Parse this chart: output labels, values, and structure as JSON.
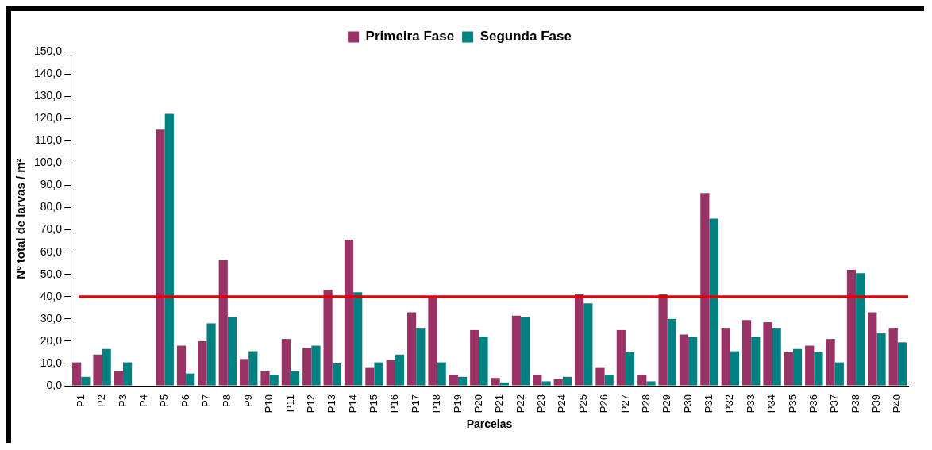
{
  "chart_data": {
    "type": "bar",
    "xlabel": "Parcelas",
    "ylabel": "Nº total de larvas / m²",
    "categories": [
      "P1",
      "P2",
      "P3",
      "P4",
      "P5",
      "P6",
      "P7",
      "P8",
      "P9",
      "P10",
      "P11",
      "P12",
      "P13",
      "P14",
      "P15",
      "P16",
      "P17",
      "P18",
      "P19",
      "P20",
      "P21",
      "P22",
      "P23",
      "P24",
      "P25",
      "P26",
      "P27",
      "P28",
      "P29",
      "P30",
      "P31",
      "P32",
      "P33",
      "P34",
      "P35",
      "P36",
      "P37",
      "P38",
      "P39",
      "P40"
    ],
    "series": [
      {
        "name": "Primeira Fase",
        "color": "#993366",
        "values": [
          10.5,
          14,
          6.5,
          0,
          115,
          18,
          20,
          56.5,
          12,
          6.5,
          21,
          17,
          43,
          65.5,
          8,
          11.5,
          33,
          40,
          5,
          25,
          3.5,
          31.5,
          5,
          3,
          41,
          8,
          25,
          5,
          41,
          23,
          86.5,
          26,
          29.5,
          28.5,
          15,
          18,
          21,
          52,
          33,
          26
        ]
      },
      {
        "name": "Segunda Fase",
        "color": "#008080",
        "values": [
          4,
          16.5,
          10.5,
          0,
          122,
          5.5,
          28,
          31,
          15.5,
          5,
          6.5,
          18,
          10,
          42,
          10.5,
          14,
          26,
          10.5,
          4,
          22,
          1.5,
          31,
          2,
          4,
          37,
          5,
          15,
          2,
          30,
          22,
          75,
          15.5,
          22,
          26,
          16.5,
          15,
          10.5,
          50.5,
          23.5,
          19.5
        ]
      }
    ],
    "ylim": [
      0,
      150
    ],
    "yticks": [
      {
        "value": 0,
        "label": "0,0"
      },
      {
        "value": 10,
        "label": "10,0"
      },
      {
        "value": 20,
        "label": "20,0"
      },
      {
        "value": 30,
        "label": "30,0"
      },
      {
        "value": 40,
        "label": "40,0"
      },
      {
        "value": 50,
        "label": "50,0"
      },
      {
        "value": 60,
        "label": "60,0"
      },
      {
        "value": 70,
        "label": "70,0"
      },
      {
        "value": 80,
        "label": "80,0"
      },
      {
        "value": 90,
        "label": "90,0"
      },
      {
        "value": 100,
        "label": "100,0"
      },
      {
        "value": 110,
        "label": "110,0"
      },
      {
        "value": 120,
        "label": "120,0"
      },
      {
        "value": 130,
        "label": "130,0"
      },
      {
        "value": 140,
        "label": "140,0"
      },
      {
        "value": 150,
        "label": "150,0"
      }
    ],
    "ref_lines": [
      {
        "axis": "y",
        "value": 40,
        "color": "#e00000"
      }
    ],
    "grid": false,
    "legend": "top"
  }
}
